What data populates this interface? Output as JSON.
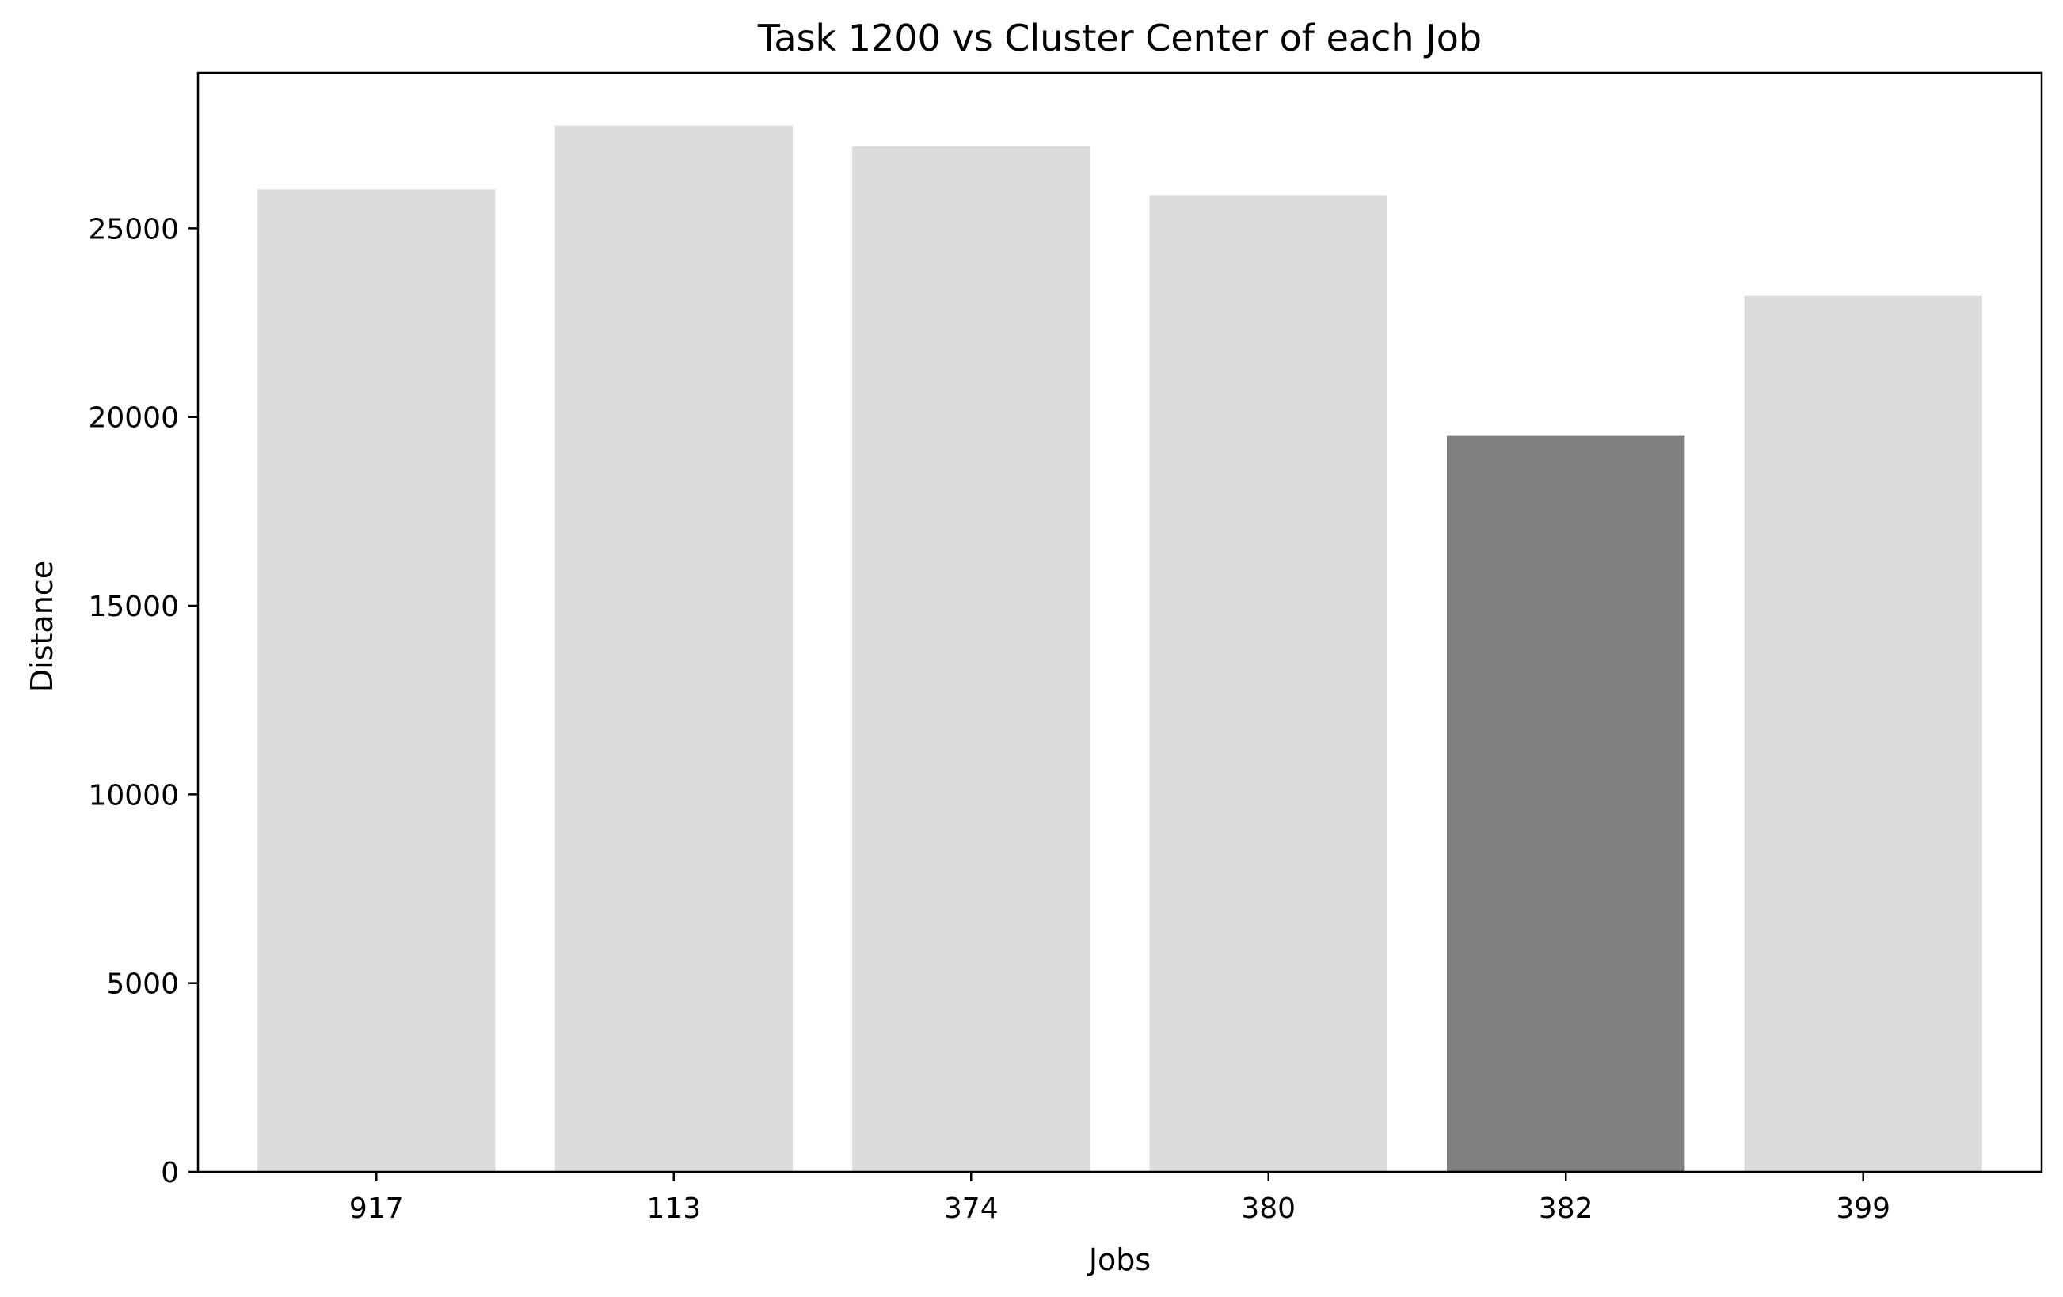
{
  "chart_data": {
    "type": "bar",
    "title": "Task 1200 vs Cluster Center of each Job",
    "xlabel": "Jobs",
    "ylabel": "Distance",
    "categories": [
      "917",
      "113",
      "374",
      "380",
      "382",
      "399"
    ],
    "values": [
      26030,
      27720,
      27180,
      25880,
      19520,
      23210
    ],
    "highlight_category": "382",
    "ylim": [
      0,
      29120
    ],
    "yticks": [
      0,
      5000,
      10000,
      15000,
      20000,
      25000
    ],
    "grid": false,
    "legend": "none",
    "colors": {
      "bar": "#dcdcdc",
      "highlight": "#808080",
      "axes": "#000000",
      "background": "#ffffff"
    }
  }
}
